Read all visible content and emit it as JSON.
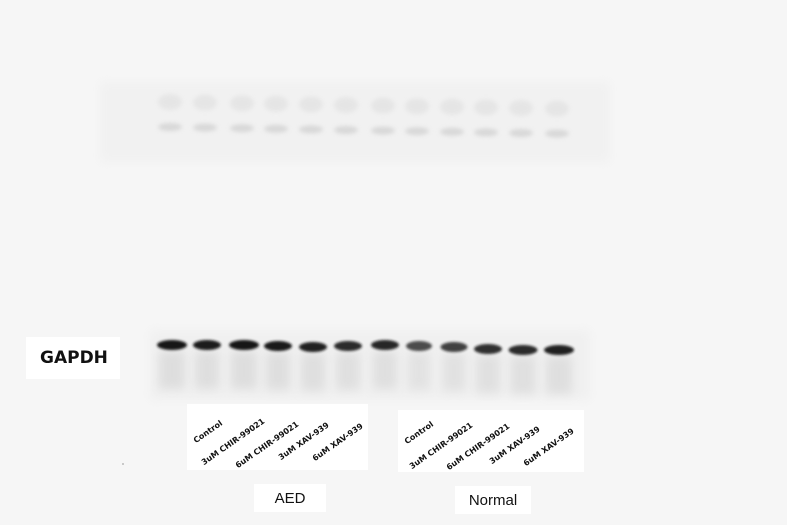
{
  "protein_label": "GAPDH",
  "groups": {
    "aed": {
      "name": "AED",
      "lanes": [
        "Control",
        "3uM CHIR-99021",
        "6uM CHIR-99021",
        "3uM XAV-939",
        "6uM XAV-939"
      ]
    },
    "normal": {
      "name": "Normal",
      "lanes": [
        "Control",
        "3uM CHIR-99021",
        "6uM CHIR-99021",
        "3uM XAV-939",
        "6uM XAV-939"
      ]
    }
  },
  "band_colors": {
    "gapdh": "#151515",
    "faint": "#dcdcdc",
    "background": "#f6f6f6"
  }
}
